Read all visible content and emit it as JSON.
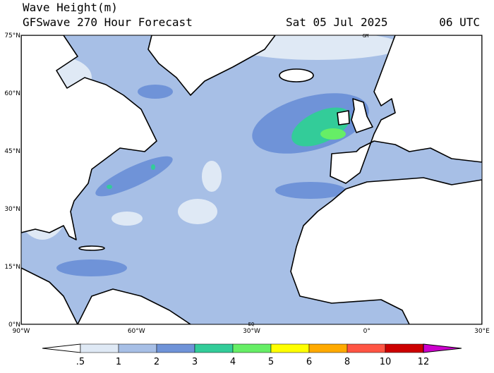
{
  "header": {
    "title": "Wave Height(m)",
    "subtitle": "GFSwave 270 Hour Forecast",
    "date": "Sat 05 Jul 2025",
    "time": "06 UTC"
  },
  "axes": {
    "lat_labels": [
      "75°N",
      "60°N",
      "45°N",
      "30°N",
      "15°N",
      "0°N"
    ],
    "lon_labels": [
      "90°W",
      "60°W",
      "30°W",
      "0°",
      "30°E"
    ]
  },
  "map_labels": {
    "gm": "GM",
    "eq": "EQ"
  },
  "colorbar": {
    "levels": [
      ".5",
      "1",
      "2",
      "3",
      "4",
      "5",
      "6",
      "8",
      "10",
      "12"
    ],
    "colors": [
      "#ffffff",
      "#dfe9f5",
      "#a7bfe6",
      "#6f93d8",
      "#33cc99",
      "#66ee66",
      "#ffff00",
      "#ffaa00",
      "#ff5544",
      "#cc0000",
      "#cc00cc"
    ]
  }
}
